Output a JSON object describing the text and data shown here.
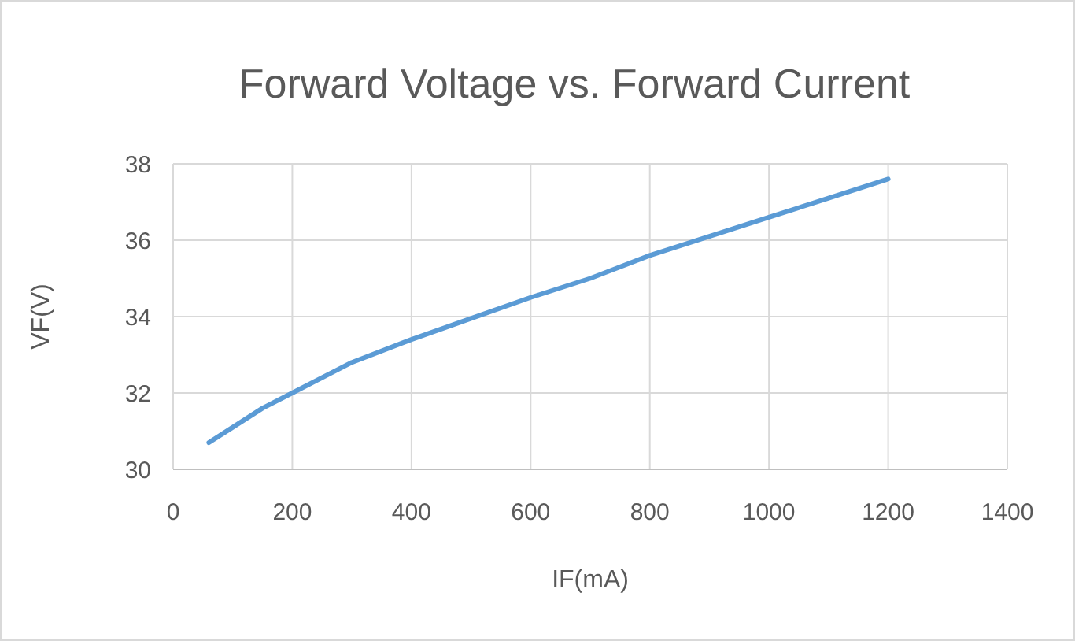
{
  "chart_data": {
    "type": "line",
    "title": "Forward Voltage vs. Forward Current",
    "xlabel": "IF(mA)",
    "ylabel": "VF(V)",
    "x": [
      60,
      100,
      150,
      200,
      300,
      400,
      500,
      600,
      700,
      800,
      900,
      1000,
      1100,
      1200
    ],
    "series": [
      {
        "color": "#5b9bd5",
        "values": [
          30.7,
          31.1,
          31.6,
          32.0,
          32.8,
          33.4,
          33.95,
          34.5,
          35.0,
          35.6,
          36.1,
          36.6,
          37.1,
          37.6
        ]
      }
    ],
    "xlim": [
      0,
      1400
    ],
    "xticks": [
      0,
      200,
      400,
      600,
      800,
      1000,
      1200,
      1400
    ],
    "ylim": [
      30,
      38
    ],
    "yticks": [
      30,
      32,
      34,
      36,
      38
    ],
    "grid": true,
    "marker": "none",
    "line_style": "solid"
  }
}
